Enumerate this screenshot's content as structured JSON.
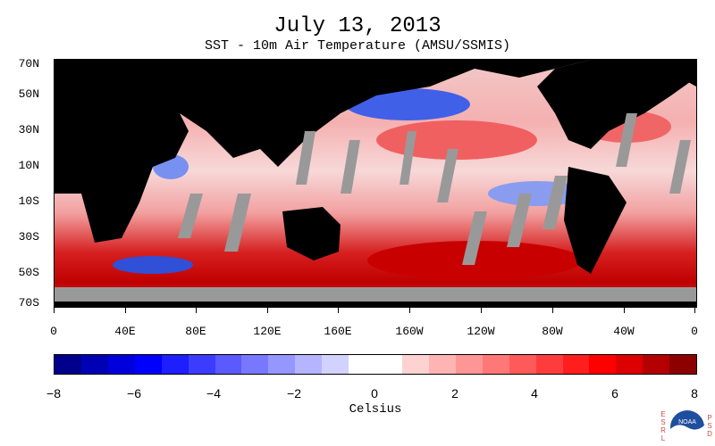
{
  "header": {
    "title": "July 13, 2013",
    "subtitle": "SST - 10m Air Temperature (AMSU/SSMIS)"
  },
  "map": {
    "lat_labels": [
      "70N",
      "50N",
      "30N",
      "10N",
      "10S",
      "30S",
      "50S",
      "70S"
    ],
    "lon_labels": [
      "0",
      "40E",
      "80E",
      "120E",
      "160E",
      "160W",
      "120W",
      "80W",
      "40W",
      "0"
    ],
    "land_color": "#000000",
    "missing_color": "#999999"
  },
  "colorbar": {
    "title": "Celsius",
    "tick_labels": [
      "−8",
      "−6",
      "−4",
      "−2",
      "0",
      "2",
      "4",
      "6",
      "8"
    ],
    "colors": [
      "#00008c",
      "#0000b4",
      "#0000dc",
      "#0000ff",
      "#1e1eff",
      "#3c3cff",
      "#5a5aff",
      "#7878ff",
      "#9696ff",
      "#b4b4ff",
      "#d2d2ff",
      "#ffffff",
      "#ffffff",
      "#ffd2d2",
      "#ffb4b4",
      "#ff9696",
      "#ff7878",
      "#ff5a5a",
      "#ff3c3c",
      "#ff1e1e",
      "#ff0000",
      "#dc0000",
      "#b40000",
      "#8c0000"
    ]
  },
  "logo": {
    "left_letters": [
      "E",
      "S",
      "R",
      "L"
    ],
    "right_letters": [
      "P",
      "S",
      "D"
    ],
    "center_text": "NOAA"
  }
}
